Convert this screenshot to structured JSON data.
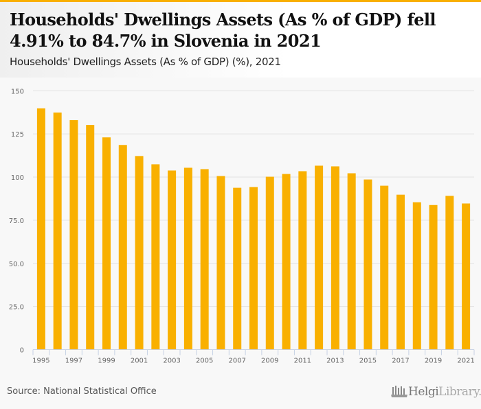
{
  "header": {
    "title": "Households' Dwellings Assets (As % of GDP) fell 4.91% to 84.7% in Slovenia in 2021",
    "subtitle": "Households' Dwellings Assets (As % of GDP) (%), 2021"
  },
  "footer": {
    "source": "Source: National Statistical Office",
    "logo_primary": "Helgi",
    "logo_secondary": "Library."
  },
  "colors": {
    "accent": "#f9b000",
    "bar": "#f9b000",
    "grid": "#e2e2e2",
    "axis": "#c6d1e4"
  },
  "chart_data": {
    "type": "bar",
    "title": "Households' Dwellings Assets (As % of GDP) (%), 2021",
    "xlabel": "",
    "ylabel": "",
    "ylim": [
      0,
      150
    ],
    "grid": true,
    "legend": "none",
    "yticks": [
      0,
      25,
      50,
      75,
      100,
      125,
      150
    ],
    "ytick_labels": [
      "0",
      "25.0",
      "50.0",
      "75.0",
      "100",
      "125",
      "150"
    ],
    "categories": [
      "1995",
      "1996",
      "1997",
      "1998",
      "1999",
      "2000",
      "2001",
      "2002",
      "2003",
      "2004",
      "2005",
      "2006",
      "2007",
      "2008",
      "2009",
      "2010",
      "2011",
      "2012",
      "2013",
      "2014",
      "2015",
      "2016",
      "2017",
      "2018",
      "2019",
      "2020",
      "2021"
    ],
    "xtick_labels": [
      "1995",
      "1997",
      "1999",
      "2001",
      "2003",
      "2005",
      "2007",
      "2009",
      "2011",
      "2013",
      "2015",
      "2017",
      "2019",
      "2021"
    ],
    "series": [
      {
        "name": "Households' Dwellings Assets (As % of GDP)",
        "values": [
          139.8,
          137.4,
          133.0,
          130.2,
          123.0,
          118.6,
          112.2,
          107.4,
          103.8,
          105.4,
          104.6,
          100.6,
          93.8,
          94.2,
          100.2,
          101.8,
          103.4,
          106.6,
          106.2,
          102.2,
          98.6,
          95.0,
          89.8,
          85.4,
          83.8,
          89.1,
          84.7
        ]
      }
    ]
  }
}
